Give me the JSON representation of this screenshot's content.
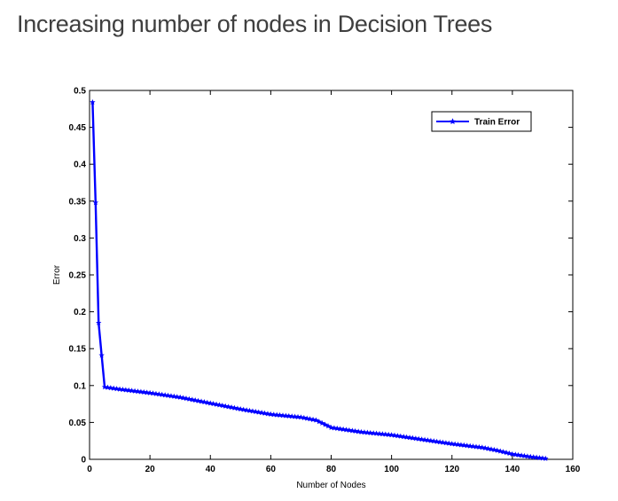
{
  "page": {
    "title": "Increasing number of nodes in Decision Trees"
  },
  "chart_data": {
    "type": "line",
    "title": "",
    "xlabel": "Number of Nodes",
    "ylabel": "Error",
    "xlim": [
      0,
      160
    ],
    "ylim": [
      0,
      0.5
    ],
    "xticks": [
      0,
      20,
      40,
      60,
      80,
      100,
      120,
      140,
      160
    ],
    "yticks": [
      0,
      0.05,
      0.1,
      0.15,
      0.2,
      0.25,
      0.3,
      0.35,
      0.4,
      0.45,
      0.5
    ],
    "xtick_labels": [
      "0",
      "20",
      "40",
      "60",
      "80",
      "100",
      "120",
      "140",
      "160"
    ],
    "ytick_labels": [
      "0",
      "0.05",
      "0.1",
      "0.15",
      "0.2",
      "0.25",
      "0.3",
      "0.35",
      "0.4",
      "0.45",
      "0.5"
    ],
    "grid": false,
    "legend_position": "top-right",
    "series": [
      {
        "name": "Train Error",
        "color": "#0000ff",
        "marker": "star",
        "x": [
          1,
          2,
          3,
          4,
          5,
          10,
          20,
          30,
          40,
          50,
          60,
          70,
          75,
          80,
          90,
          100,
          110,
          120,
          130,
          135,
          140,
          145,
          151
        ],
        "y": [
          0.484,
          0.348,
          0.185,
          0.141,
          0.098,
          0.095,
          0.09,
          0.084,
          0.076,
          0.068,
          0.061,
          0.057,
          0.053,
          0.043,
          0.037,
          0.033,
          0.027,
          0.021,
          0.016,
          0.012,
          0.007,
          0.004,
          0.001
        ]
      }
    ]
  }
}
